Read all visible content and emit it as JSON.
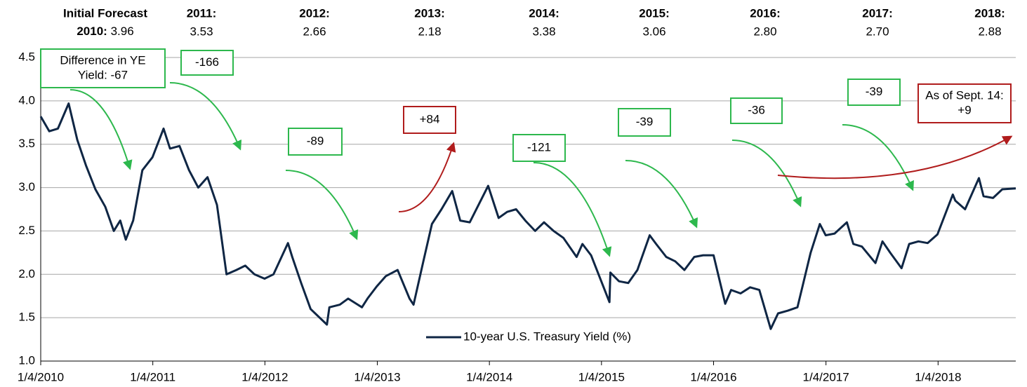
{
  "chart_data": {
    "type": "line",
    "forecast_title": "Initial Forecast",
    "forecasts": [
      {
        "year": "2010:",
        "value": "3.96"
      },
      {
        "year": "2011:",
        "value": "3.53"
      },
      {
        "year": "2012:",
        "value": "2.66"
      },
      {
        "year": "2013:",
        "value": "2.18"
      },
      {
        "year": "2014:",
        "value": "3.38"
      },
      {
        "year": "2015:",
        "value": "3.06"
      },
      {
        "year": "2016:",
        "value": "2.80"
      },
      {
        "year": "2017:",
        "value": "2.70"
      },
      {
        "year": "2018:",
        "value": "2.88"
      }
    ],
    "annotations": [
      {
        "lines": [
          "Difference in YE",
          "Yield: -67"
        ],
        "color": "#2db84d"
      },
      {
        "lines": [
          "-166"
        ],
        "color": "#2db84d"
      },
      {
        "lines": [
          "-89"
        ],
        "color": "#2db84d"
      },
      {
        "lines": [
          "+84"
        ],
        "color": "#b01c1c"
      },
      {
        "lines": [
          "-121"
        ],
        "color": "#2db84d"
      },
      {
        "lines": [
          "-39"
        ],
        "color": "#2db84d"
      },
      {
        "lines": [
          "-36"
        ],
        "color": "#2db84d"
      },
      {
        "lines": [
          "-39"
        ],
        "color": "#2db84d"
      },
      {
        "lines": [
          "As of Sept. 14:",
          "+9"
        ],
        "color": "#b01c1c"
      }
    ],
    "x": [
      "2010-01-04",
      "2010-02-01",
      "2010-03-01",
      "2010-04-05",
      "2010-05-03",
      "2010-06-01",
      "2010-07-01",
      "2010-08-02",
      "2010-08-30",
      "2010-09-20",
      "2010-10-08",
      "2010-11-01",
      "2010-12-01",
      "2011-01-03",
      "2011-02-08",
      "2011-03-01",
      "2011-04-01",
      "2011-05-02",
      "2011-06-01",
      "2011-07-01",
      "2011-08-01",
      "2011-09-01",
      "2011-10-03",
      "2011-11-01",
      "2011-12-01",
      "2012-01-03",
      "2012-02-01",
      "2012-03-19",
      "2012-04-02",
      "2012-05-01",
      "2012-06-01",
      "2012-07-24",
      "2012-08-01",
      "2012-09-04",
      "2012-10-01",
      "2012-11-15",
      "2012-12-03",
      "2013-01-02",
      "2013-02-01",
      "2013-03-11",
      "2013-04-19",
      "2013-05-02",
      "2013-06-03",
      "2013-07-01",
      "2013-08-01",
      "2013-09-05",
      "2013-10-01",
      "2013-11-01",
      "2013-12-31",
      "2014-02-03",
      "2014-03-03",
      "2014-04-01",
      "2014-05-01",
      "2014-06-02",
      "2014-07-01",
      "2014-08-01",
      "2014-09-02",
      "2014-10-15",
      "2014-11-03",
      "2014-12-01",
      "2015-01-30",
      "2015-02-02",
      "2015-03-02",
      "2015-04-01",
      "2015-05-01",
      "2015-06-10",
      "2015-07-01",
      "2015-08-03",
      "2015-09-01",
      "2015-10-01",
      "2015-11-02",
      "2015-12-01",
      "2016-01-04",
      "2016-02-11",
      "2016-03-01",
      "2016-04-01",
      "2016-05-02",
      "2016-06-01",
      "2016-07-08",
      "2016-08-01",
      "2016-09-01",
      "2016-10-03",
      "2016-11-15",
      "2016-12-15",
      "2017-01-03",
      "2017-02-01",
      "2017-03-13",
      "2017-04-03",
      "2017-05-01",
      "2017-06-14",
      "2017-07-07",
      "2017-08-01",
      "2017-09-07",
      "2017-10-02",
      "2017-11-01",
      "2017-12-01",
      "2018-01-02",
      "2018-02-21",
      "2018-03-01",
      "2018-04-02",
      "2018-05-17",
      "2018-06-01",
      "2018-07-02",
      "2018-08-01",
      "2018-09-14"
    ],
    "series": [
      {
        "name": "10-year U.S. Treasury Yield (%)",
        "color": "#0f2644",
        "values": [
          3.82,
          3.65,
          3.68,
          3.97,
          3.55,
          3.25,
          2.98,
          2.78,
          2.5,
          2.62,
          2.4,
          2.62,
          3.2,
          3.35,
          3.68,
          3.45,
          3.48,
          3.2,
          3.0,
          3.12,
          2.8,
          2.0,
          2.05,
          2.1,
          2.0,
          1.95,
          2.0,
          2.36,
          2.2,
          1.9,
          1.6,
          1.42,
          1.62,
          1.65,
          1.72,
          1.62,
          1.72,
          1.86,
          1.98,
          2.05,
          1.72,
          1.65,
          2.15,
          2.58,
          2.75,
          2.96,
          2.62,
          2.6,
          3.02,
          2.65,
          2.72,
          2.75,
          2.62,
          2.5,
          2.6,
          2.5,
          2.42,
          2.2,
          2.35,
          2.22,
          1.68,
          2.02,
          1.92,
          1.9,
          2.05,
          2.45,
          2.35,
          2.2,
          2.15,
          2.05,
          2.2,
          2.22,
          2.22,
          1.66,
          1.82,
          1.78,
          1.85,
          1.82,
          1.37,
          1.55,
          1.58,
          1.62,
          2.25,
          2.58,
          2.45,
          2.47,
          2.6,
          2.35,
          2.32,
          2.13,
          2.38,
          2.25,
          2.07,
          2.35,
          2.38,
          2.36,
          2.46,
          2.92,
          2.85,
          2.75,
          3.11,
          2.9,
          2.88,
          2.98,
          2.99
        ]
      }
    ],
    "xlim": [
      "2010-01-04",
      "2018-09-14"
    ],
    "xticks": [
      {
        "value": "2010-01-04",
        "label": "1/4/2010"
      },
      {
        "value": "2011-01-04",
        "label": "1/4/2011"
      },
      {
        "value": "2012-01-04",
        "label": "1/4/2012"
      },
      {
        "value": "2013-01-04",
        "label": "1/4/2013"
      },
      {
        "value": "2014-01-04",
        "label": "1/4/2014"
      },
      {
        "value": "2015-01-04",
        "label": "1/4/2015"
      },
      {
        "value": "2016-01-04",
        "label": "1/4/2016"
      },
      {
        "value": "2017-01-04",
        "label": "1/4/2017"
      },
      {
        "value": "2018-01-04",
        "label": "1/4/2018"
      }
    ],
    "ylim": [
      1,
      4.5
    ],
    "yticks": [
      {
        "value": 1,
        "label": "1.0"
      },
      1.5,
      {
        "value": 2,
        "label": "2.0"
      },
      2.5,
      {
        "value": 3,
        "label": "3.0"
      },
      3.5,
      {
        "value": 4,
        "label": "4.0"
      },
      4.5
    ],
    "grid": true
  }
}
